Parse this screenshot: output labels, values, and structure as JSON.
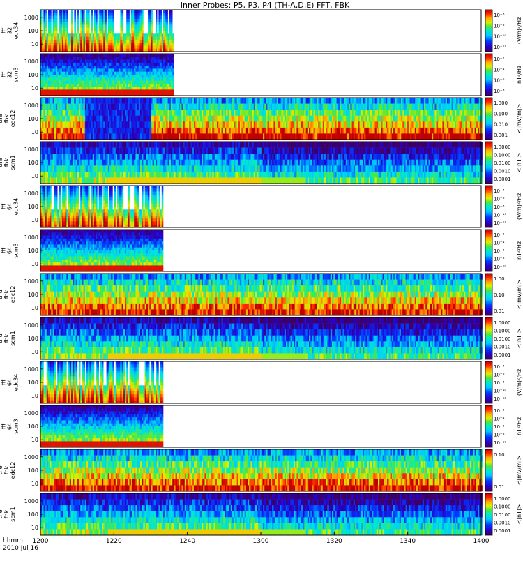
{
  "title": "Inner Probes: P5, P3, P4 (TH-A,D,E) FFT, FBK",
  "x_axis": {
    "ticks": [
      "1200",
      "1220",
      "1240",
      "1300",
      "1320",
      "1340",
      "1400"
    ],
    "corner_label_1": "hhmm",
    "corner_label_2": "2010 Jul 16"
  },
  "chart_data": {
    "type": "heatmap",
    "title": "Inner Probes: P5, P3, P4 (TH-A,D,E) FFT, FBK",
    "x_range_hhmm": [
      "1200",
      "1400"
    ],
    "panels": [
      {
        "label_lines": [
          "tha",
          "fff",
          "32",
          "edc34"
        ],
        "y_ticks": [
          "1000",
          "100",
          "10"
        ],
        "cbar_label": "(V/m)²/Hz",
        "cbar_ticks": [
          "10⁻⁶",
          "10⁻⁸",
          "10⁻¹⁰",
          "10⁻¹²"
        ],
        "kind": "fff",
        "data_end_hhmm": "1236",
        "seed": 11
      },
      {
        "label_lines": [
          "tha",
          "fff",
          "32",
          "scm3"
        ],
        "y_ticks": [
          "1000",
          "100",
          "10"
        ],
        "cbar_label": "nT²/Hz",
        "cbar_ticks": [
          "10⁻²",
          "10⁻⁴",
          "10⁻⁶",
          "10⁻⁸"
        ],
        "kind": "scm",
        "data_end_hhmm": "1236",
        "seed": 12
      },
      {
        "label_lines": [
          "tha",
          "fbk",
          "edc12"
        ],
        "y_ticks": [
          "1000",
          "100",
          "10"
        ],
        "cbar_label": "<|mV/m|>",
        "cbar_ticks": [
          "1.000",
          "0.100",
          "0.010",
          "0.001"
        ],
        "kind": "fbk_e",
        "seed": 13
      },
      {
        "label_lines": [
          "tha",
          "fbk",
          "scm1"
        ],
        "y_ticks": [
          "1000",
          "100",
          "10"
        ],
        "cbar_label": "<|nT|>",
        "cbar_ticks": [
          "1.0000",
          "0.1000",
          "0.0100",
          "0.0010",
          "0.0001"
        ],
        "kind": "fbk_b",
        "seed": 14
      },
      {
        "label_lines": [
          "thd",
          "fff",
          "64",
          "edc34"
        ],
        "y_ticks": [
          "1000",
          "100",
          "10"
        ],
        "cbar_label": "(V/m)²/Hz",
        "cbar_ticks": [
          "10⁻⁴",
          "10⁻⁶",
          "10⁻⁸",
          "10⁻¹⁰",
          "10⁻¹²"
        ],
        "kind": "fff",
        "data_end_hhmm": "1233",
        "seed": 21
      },
      {
        "label_lines": [
          "thd",
          "fff",
          "64",
          "scm3"
        ],
        "y_ticks": [
          "1000",
          "100",
          "10"
        ],
        "cbar_label": "nT²/Hz",
        "cbar_ticks": [
          "10⁻²",
          "10⁻⁴",
          "10⁻⁶",
          "10⁻⁸",
          "10⁻¹⁰"
        ],
        "kind": "scm",
        "data_end_hhmm": "1233",
        "seed": 22
      },
      {
        "label_lines": [
          "thd",
          "fbk",
          "edc12"
        ],
        "y_ticks": [
          "1000",
          "100",
          "10"
        ],
        "cbar_label": "<|mV/m|>",
        "cbar_ticks": [
          "1.00",
          "0.10",
          "0.01"
        ],
        "kind": "fbk_e",
        "seed": 23
      },
      {
        "label_lines": [
          "thd",
          "fbk",
          "scm1"
        ],
        "y_ticks": [
          "1000",
          "100",
          "10"
        ],
        "cbar_label": "<|nT|>",
        "cbar_ticks": [
          "1.0000",
          "0.1000",
          "0.0100",
          "0.0010",
          "0.0001"
        ],
        "kind": "fbk_b",
        "seed": 24
      },
      {
        "label_lines": [
          "the",
          "fff",
          "64",
          "edc34"
        ],
        "y_ticks": [
          "1000",
          "100",
          "10"
        ],
        "cbar_label": "(V/m)²/Hz",
        "cbar_ticks": [
          "10⁻⁴",
          "10⁻⁶",
          "10⁻⁸",
          "10⁻¹⁰",
          "10⁻¹²"
        ],
        "kind": "fff",
        "data_end_hhmm": "1233",
        "seed": 31
      },
      {
        "label_lines": [
          "the",
          "fff",
          "64",
          "scm3"
        ],
        "y_ticks": [
          "1000",
          "100",
          "10"
        ],
        "cbar_label": "nT²/Hz",
        "cbar_ticks": [
          "10⁻²",
          "10⁻⁴",
          "10⁻⁶",
          "10⁻⁸",
          "10⁻¹⁰"
        ],
        "kind": "scm",
        "data_end_hhmm": "1233",
        "seed": 32
      },
      {
        "label_lines": [
          "the",
          "fbk",
          "edc12"
        ],
        "y_ticks": [
          "1000",
          "100",
          "10"
        ],
        "cbar_label": "<|mV/m|>",
        "cbar_ticks": [
          "0.10",
          "0.01"
        ],
        "kind": "fbk_e",
        "seed": 33
      },
      {
        "label_lines": [
          "the",
          "fbk",
          "scm1"
        ],
        "y_ticks": [
          "1000",
          "100",
          "10"
        ],
        "cbar_label": "<|nT|>",
        "cbar_ticks": [
          "1.0000",
          "0.1000",
          "0.0100",
          "0.0010",
          "0.0001"
        ],
        "kind": "fbk_b",
        "seed": 34
      }
    ]
  }
}
